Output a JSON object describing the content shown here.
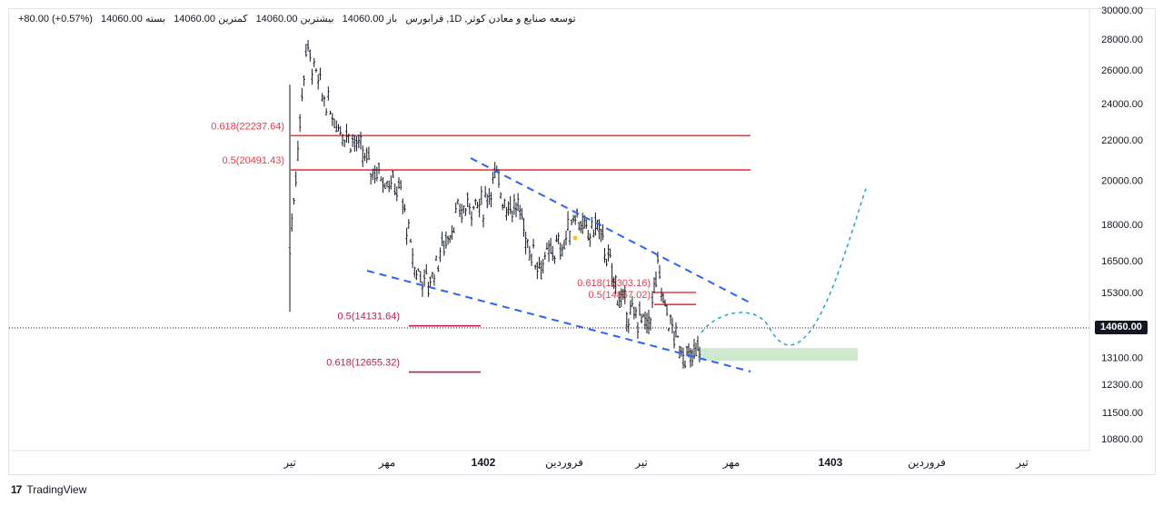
{
  "legend": {
    "symbol": "توسعه صنایع و معادن کوثر, 1D, فرابورس",
    "open": "باز 14060.00",
    "high": "بیشترین 14060.00",
    "low": "کمترین 14060.00",
    "close": "بسته 14060.00",
    "change": "+80.00 (+0.57%)"
  },
  "footer": {
    "brand": "TradingView",
    "logo": "17"
  },
  "colors": {
    "candle": "#131722",
    "fib": "#f23645",
    "fib_magenta": "#c2185b",
    "channel": "#2962ff",
    "projection": "#22a7c9",
    "target_box": "#cfe9cf",
    "last_price_bg": "#131722"
  },
  "chart_data": {
    "type": "candlestick",
    "title": "",
    "symbol": "توسعه صنایع و معادن کوثر",
    "interval": "1D",
    "exchange": "فرابورس",
    "last_price": "14060.00",
    "y_axis": {
      "scale": "log",
      "range": [
        10500,
        30000
      ],
      "ticks": [
        "30000.00",
        "28000.00",
        "26000.00",
        "24000.00",
        "22000.00",
        "20000.00",
        "18000.00",
        "16500.00",
        "15300.00",
        "14060.00",
        "13100.00",
        "12300.00",
        "11500.00",
        "10800.00"
      ]
    },
    "x_axis": {
      "ticks": [
        {
          "label": "تیر",
          "bold": false
        },
        {
          "label": "مهر",
          "bold": false
        },
        {
          "label": "1402",
          "bold": true
        },
        {
          "label": "فروردین",
          "bold": false
        },
        {
          "label": "تیر",
          "bold": false
        },
        {
          "label": "مهر",
          "bold": false
        },
        {
          "label": "1403",
          "bold": true
        },
        {
          "label": "فروردین",
          "bold": false
        },
        {
          "label": "تیر",
          "bold": false
        }
      ]
    },
    "price_path": [
      [
        "تیر",
        17000
      ],
      [
        null,
        27500
      ],
      [
        null,
        24500
      ],
      [
        null,
        22800
      ],
      [
        null,
        21900
      ],
      [
        null,
        20600
      ],
      [
        "مهر",
        20100
      ],
      [
        null,
        19400
      ],
      [
        null,
        16200
      ],
      [
        null,
        15600
      ],
      [
        null,
        17000
      ],
      [
        null,
        18300
      ],
      [
        null,
        18900
      ],
      [
        "1402",
        18800
      ],
      [
        null,
        20200
      ],
      [
        null,
        18900
      ],
      [
        null,
        18700
      ],
      [
        null,
        17000
      ],
      [
        null,
        16300
      ],
      [
        null,
        16900
      ],
      [
        "فروردین",
        17200
      ],
      [
        null,
        18600
      ],
      [
        null,
        17500
      ],
      [
        null,
        18000
      ],
      [
        null,
        16500
      ],
      [
        null,
        15100
      ],
      [
        null,
        14500
      ],
      [
        "تیر",
        14400
      ],
      [
        null,
        14000
      ],
      [
        null,
        14900
      ],
      [
        null,
        16200
      ],
      [
        null,
        15000
      ],
      [
        null,
        14400
      ],
      [
        null,
        13800
      ],
      [
        null,
        13500
      ],
      [
        null,
        13200
      ],
      [
        null,
        13000
      ],
      [
        null,
        13200
      ],
      [
        null,
        13600
      ]
    ],
    "fib_levels": [
      {
        "label": "0.618(22237.64)",
        "value": 22237.64,
        "color": "red"
      },
      {
        "label": "0.5(20491.43)",
        "value": 20491.43,
        "color": "red"
      },
      {
        "label": "0.618(15303.16)",
        "value": 15303.16,
        "color": "red"
      },
      {
        "label": "0.5(14867.02)",
        "value": 14867.02,
        "color": "red"
      },
      {
        "label": "0.5(14131.64)",
        "value": 14131.64,
        "color": "magenta"
      },
      {
        "label": "0.618(12655.32)",
        "value": 12655.32,
        "color": "magenta"
      }
    ],
    "channel_lines": [
      {
        "name": "upper",
        "from": [
          "1402",
          21000
        ],
        "to": [
          "مهر",
          15000
        ]
      },
      {
        "name": "lower",
        "from": [
          "مهر",
          16600
        ],
        "to": [
          "مهر",
          12500
        ]
      }
    ],
    "projection": {
      "style": "dashed",
      "low": 13300,
      "peak": 14700,
      "end": 19600
    },
    "target_zone": {
      "low": 13000,
      "high": 13400
    },
    "grid": false,
    "legend_position": "top-left"
  }
}
